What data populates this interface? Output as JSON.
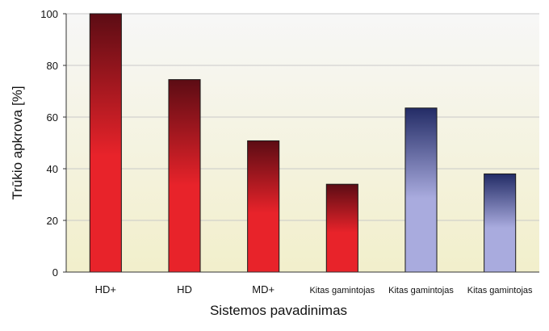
{
  "chart_data": {
    "type": "bar",
    "title": "",
    "xlabel": "Sistemos pavadinimas",
    "ylabel": "Trūkio apkrova [%]",
    "ylim": [
      0,
      100
    ],
    "yticks": [
      0,
      20,
      40,
      60,
      80,
      100
    ],
    "grid": true,
    "legend": "none",
    "categories": [
      "HD+",
      "HD",
      "MD+",
      "Kitas gamintojas",
      "Kitas gamintojas",
      "Kitas gamintojas"
    ],
    "values": [
      100,
      74.5,
      50.8,
      34,
      63.5,
      38
    ],
    "bar_colors": [
      {
        "top": "#5c0c14",
        "bottom": "#e8232a"
      },
      {
        "top": "#5c0c14",
        "bottom": "#e8232a"
      },
      {
        "top": "#5c0c14",
        "bottom": "#e8232a"
      },
      {
        "top": "#5c0c14",
        "bottom": "#e8232a"
      },
      {
        "top": "#232c66",
        "bottom": "#a9abde"
      },
      {
        "top": "#232c66",
        "bottom": "#a9abde"
      }
    ],
    "plot_background": {
      "top": "#f7f7f7",
      "bottom": "#f2efcb"
    }
  }
}
